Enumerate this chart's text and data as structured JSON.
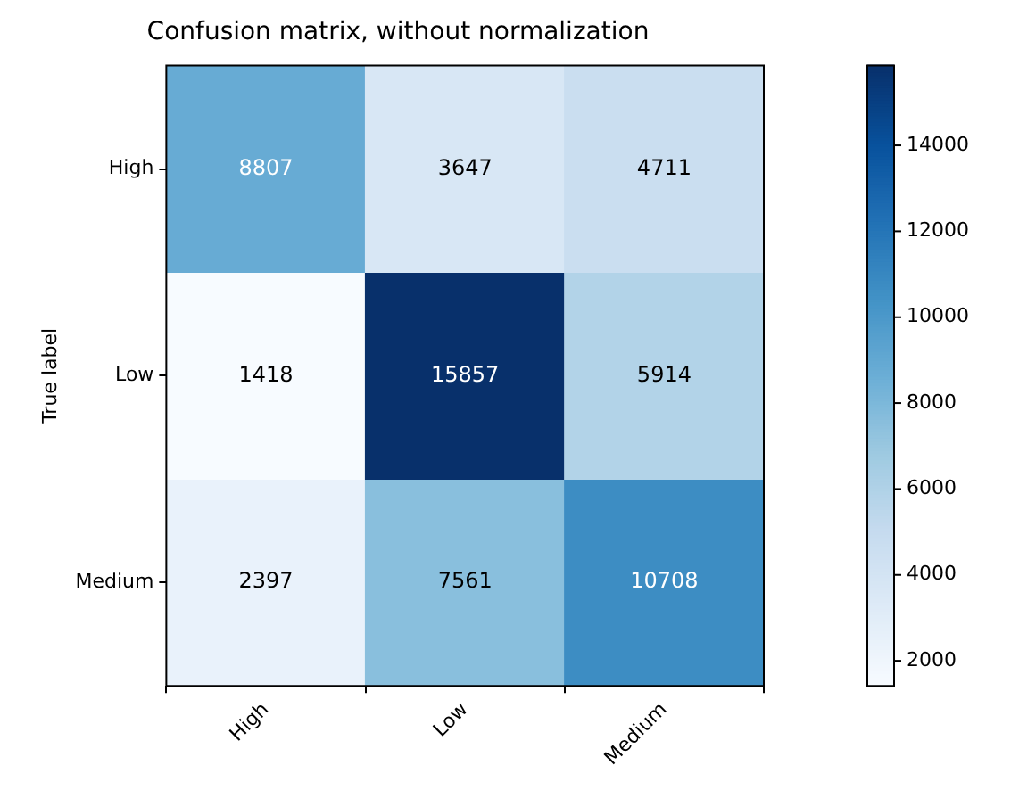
{
  "chart_data": {
    "type": "heatmap",
    "title": "Confusion matrix, without normalization",
    "ylabel": "True label",
    "categories": [
      "High",
      "Low",
      "Medium"
    ],
    "y_categories": [
      "High",
      "Low",
      "Medium"
    ],
    "cells": [
      [
        8807,
        3647,
        4711
      ],
      [
        1418,
        15857,
        5914
      ],
      [
        2397,
        7561,
        10708
      ]
    ],
    "clim": [
      1418,
      15857
    ],
    "cticks": [
      2000,
      4000,
      6000,
      8000,
      10000,
      12000,
      14000
    ],
    "data_labels": true
  }
}
